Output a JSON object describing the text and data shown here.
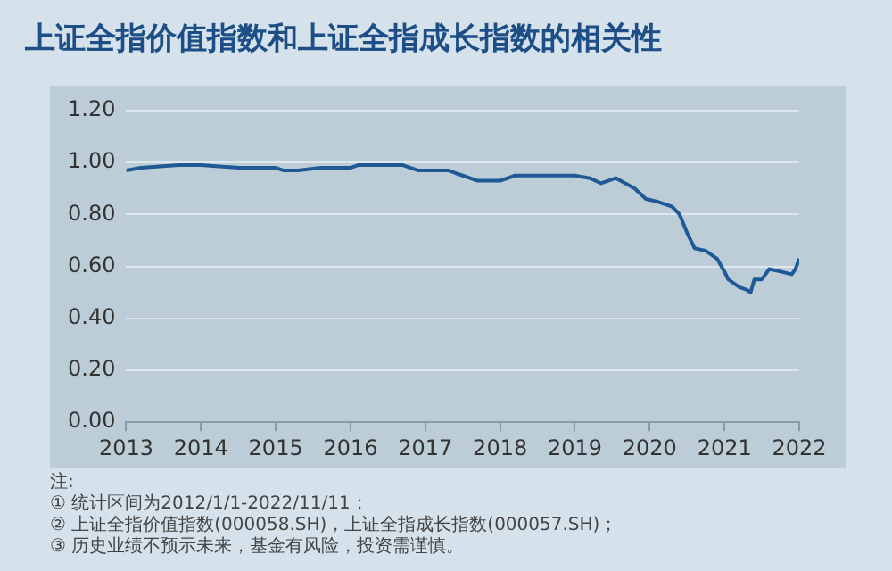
{
  "chart_data": {
    "type": "line",
    "title": "上证全指价值指数和上证全指成长指数的相关性",
    "x": [
      2013,
      2013.2,
      2013.7,
      2014,
      2014.5,
      2014.8,
      2015,
      2015.1,
      2015.3,
      2015.6,
      2016,
      2016.1,
      2016.7,
      2016.9,
      2017,
      2017.3,
      2017.5,
      2017.7,
      2018,
      2018.2,
      2018.5,
      2019,
      2019.2,
      2019.35,
      2019.55,
      2019.8,
      2019.95,
      2020.1,
      2020.3,
      2020.4,
      2020.5,
      2020.6,
      2020.75,
      2020.9,
      2021,
      2021.05,
      2021.2,
      2021.3,
      2021.35,
      2021.4,
      2021.5,
      2021.6,
      2021.75,
      2021.9,
      2021.95,
      2022
    ],
    "series": [
      {
        "color": "#1f5a96",
        "values": [
          0.97,
          0.98,
          0.99,
          0.99,
          0.98,
          0.98,
          0.98,
          0.97,
          0.97,
          0.98,
          0.98,
          0.99,
          0.99,
          0.97,
          0.97,
          0.97,
          0.95,
          0.93,
          0.93,
          0.95,
          0.95,
          0.95,
          0.94,
          0.92,
          0.94,
          0.9,
          0.86,
          0.85,
          0.83,
          0.8,
          0.73,
          0.67,
          0.66,
          0.63,
          0.58,
          0.55,
          0.52,
          0.51,
          0.5,
          0.55,
          0.55,
          0.59,
          0.58,
          0.57,
          0.59,
          0.63
        ]
      }
    ],
    "xlim": [
      2013,
      2022
    ],
    "xticks": [
      2013,
      2014,
      2015,
      2016,
      2017,
      2018,
      2019,
      2020,
      2021,
      2022
    ],
    "ylim": [
      0,
      1.2
    ],
    "yticks": [
      {
        "value": 0,
        "label": "0.00"
      },
      {
        "value": 0.2,
        "label": "0.20"
      },
      {
        "value": 0.4,
        "label": "0.40"
      },
      {
        "value": 0.6,
        "label": "0.60"
      },
      {
        "value": 0.8,
        "label": "0.80"
      },
      {
        "value": 1,
        "label": "1.00"
      },
      {
        "value": 1.2,
        "label": "1.20"
      }
    ],
    "grid": "y",
    "legend": false,
    "marker": "none",
    "line_style": "solid",
    "annotations": [
      "注:",
      "① 统计区间为2012/1/1-2022/11/11；",
      "② 上证全指价值指数(000058.SH)，上证全指成长指数(000057.SH)；",
      "③ 历史业绩不预示未来，基金有风险，投资需谨慎。"
    ]
  }
}
